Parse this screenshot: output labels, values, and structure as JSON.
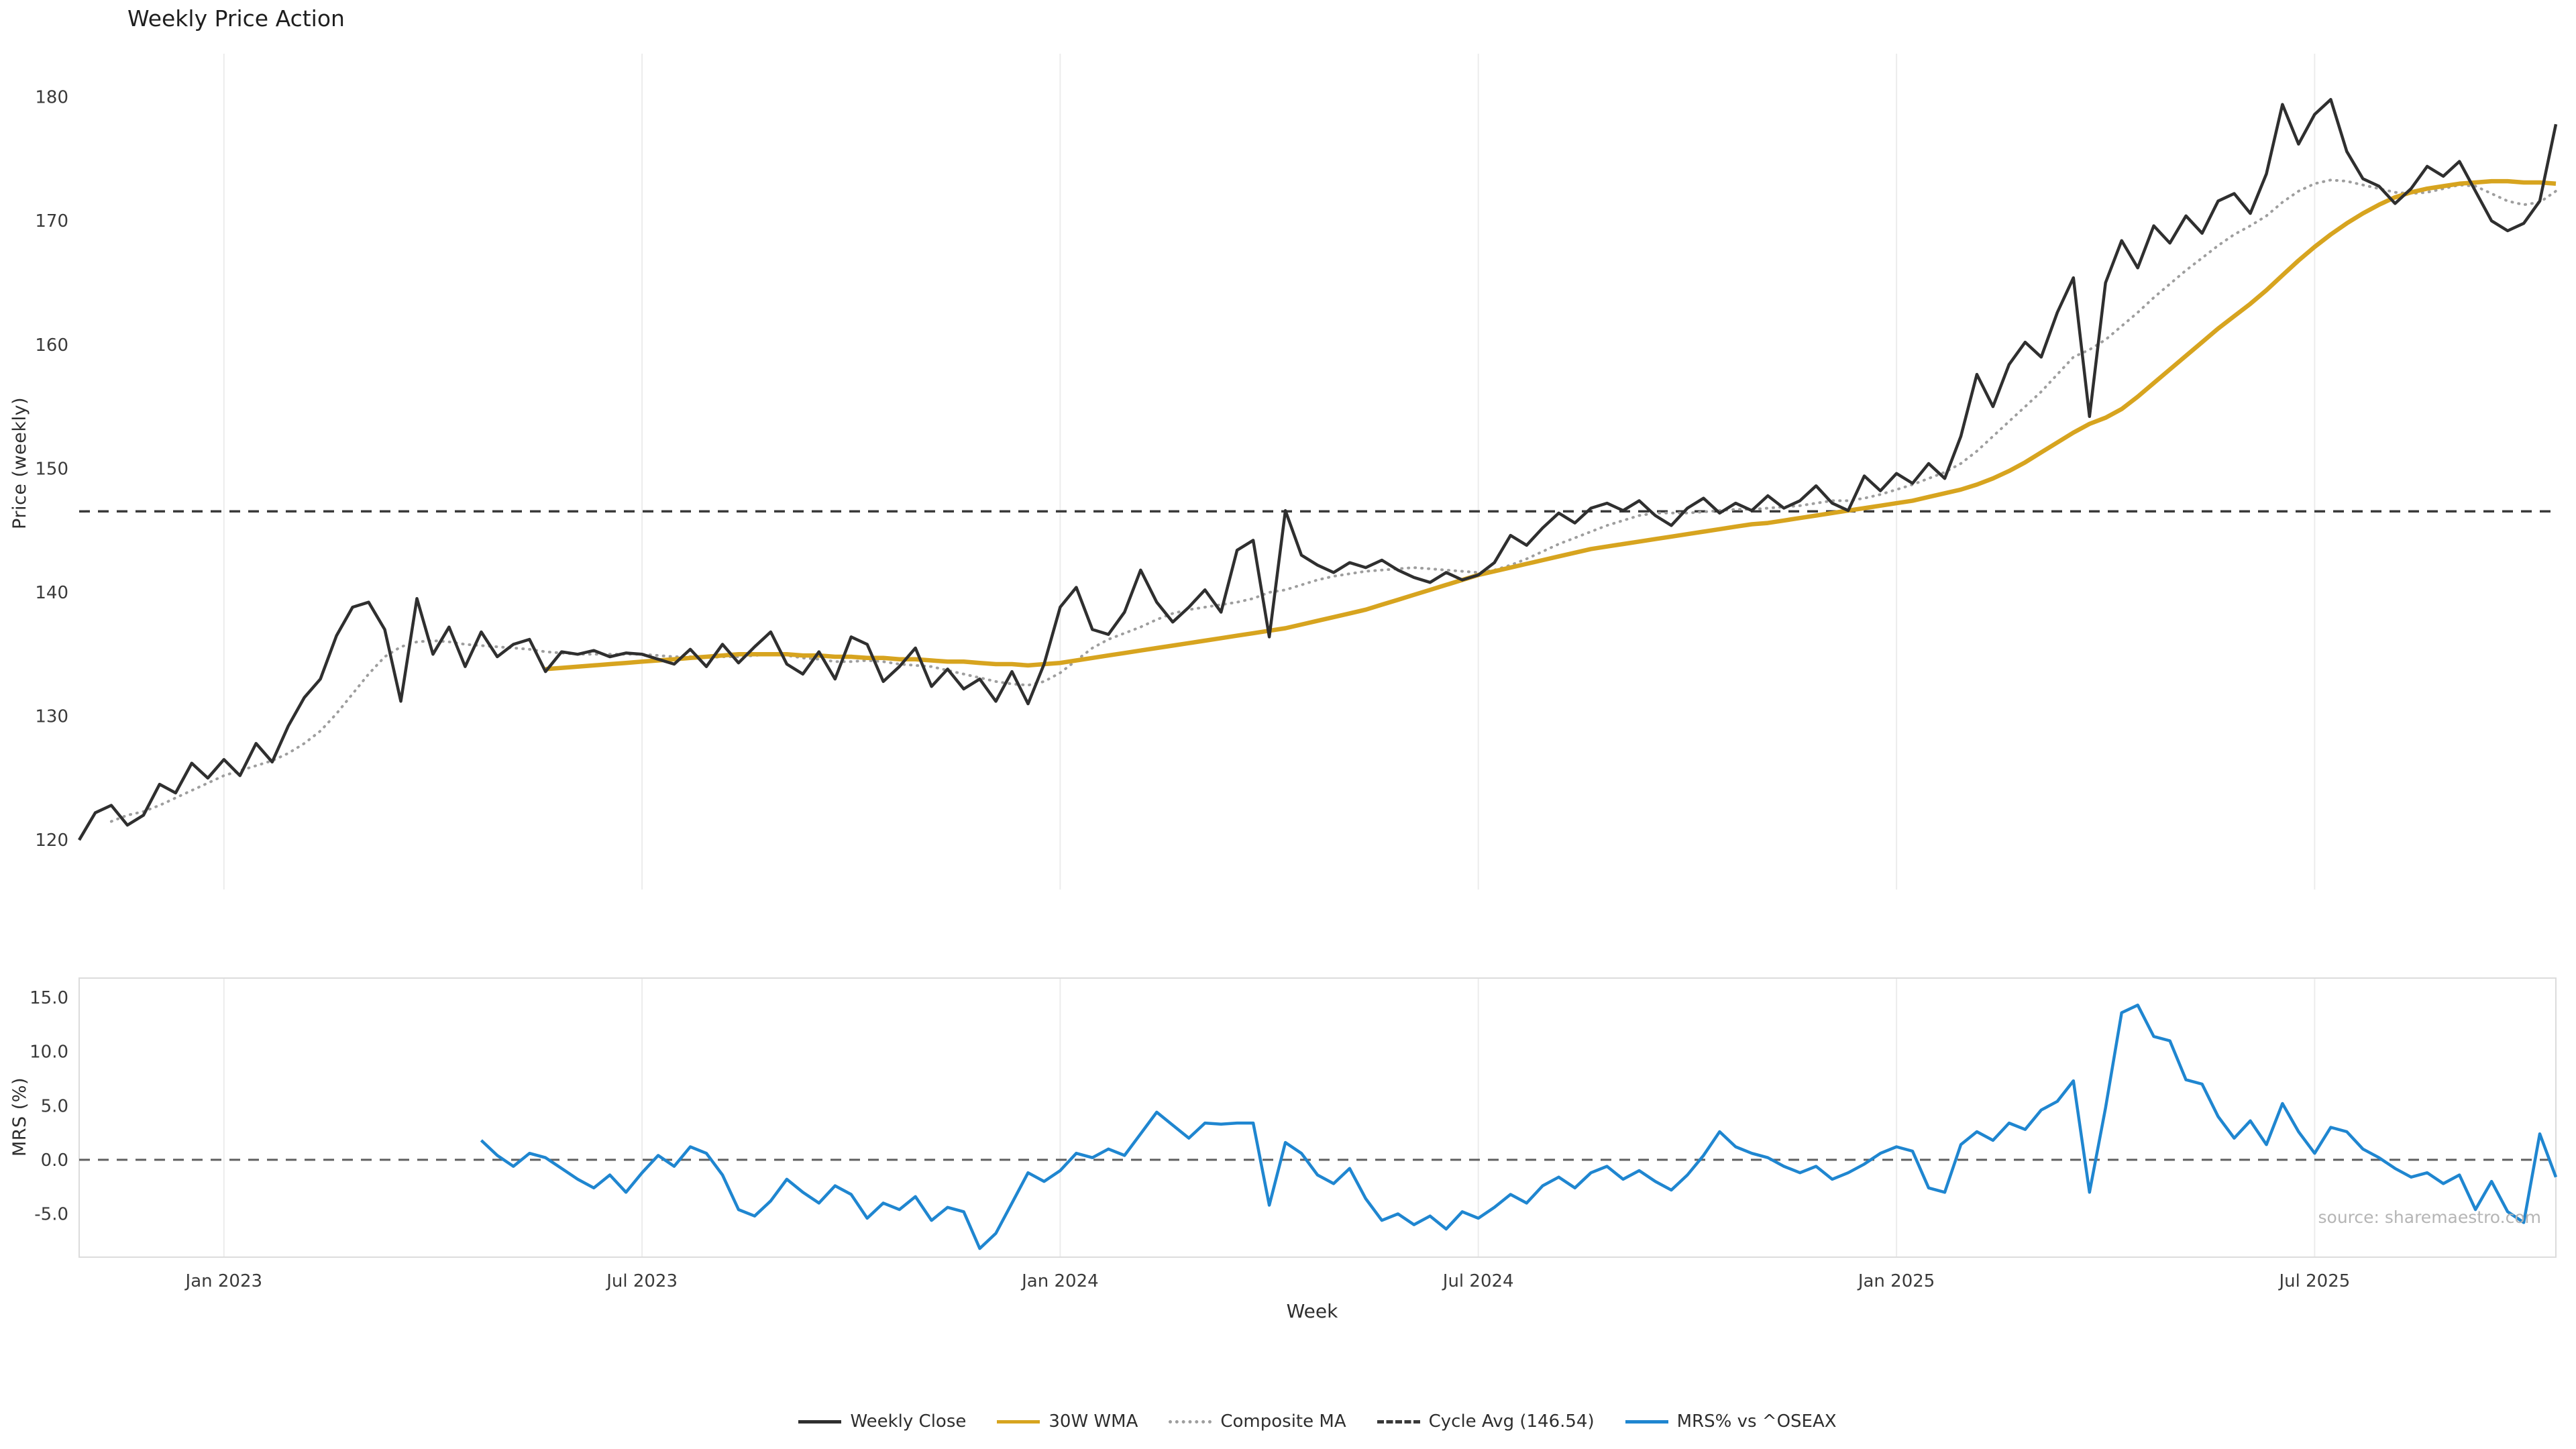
{
  "title": "Weekly Price Action",
  "source_text": "source: sharemaestro.com",
  "axes": {
    "price_axis_label": "Price (weekly)",
    "mrs_axis_label": "MRS (%)",
    "x_axis_label": "Week"
  },
  "colors": {
    "weekly_close": "#2f2f2f",
    "wma_30w": "#d7a41f",
    "composite_ma": "#9e9e9e",
    "cycle_avg": "#3a3a3a",
    "mrs": "#1f86d0",
    "gridline": "#ececec",
    "panel_border": "#dcdcdc",
    "tick_text": "#3a3a3a",
    "source": "#b5b5b5"
  },
  "legend": {
    "items": [
      {
        "label": "Weekly Close",
        "color": "#2f2f2f",
        "line_style": "solid"
      },
      {
        "label": "30W WMA",
        "color": "#d7a41f",
        "line_style": "solid"
      },
      {
        "label": "Composite MA",
        "color": "#9e9e9e",
        "line_style": "dotted"
      },
      {
        "label": "Cycle Avg (146.54)",
        "color": "#3a3a3a",
        "line_style": "dashed"
      },
      {
        "label": "MRS% vs ^OSEAX",
        "color": "#1f86d0",
        "line_style": "solid"
      }
    ]
  },
  "chart_data": [
    {
      "type": "line",
      "panel": "price",
      "title": "Weekly Price Action",
      "xlabel": "Week",
      "ylabel": "Price (weekly)",
      "ylim": [
        116,
        183.5
      ],
      "y_ticks": [
        120,
        130,
        140,
        150,
        160,
        170,
        180
      ],
      "n_weeks": 155,
      "x_tick_labels": [
        "Jan 2023",
        "Jul 2023",
        "Jan 2024",
        "Jul 2024",
        "Jan 2025",
        "Jul 2025"
      ],
      "x_tick_weeks": [
        9,
        35,
        61,
        87,
        113,
        139
      ],
      "grid": "vertical",
      "legend_position": "bottom-center",
      "hlines": [
        {
          "name": "Cycle Avg",
          "value": 146.54,
          "style": "dashed"
        }
      ],
      "series": [
        {
          "name": "Weekly Close",
          "start_week": 0,
          "values": [
            120.0,
            122.2,
            122.8,
            121.2,
            122.0,
            124.5,
            123.8,
            126.2,
            125.0,
            126.5,
            125.2,
            127.8,
            126.3,
            129.2,
            131.5,
            133.0,
            136.5,
            138.8,
            139.2,
            137.0,
            131.2,
            139.5,
            135.0,
            137.2,
            134.0,
            136.8,
            134.8,
            135.8,
            136.2,
            133.6,
            135.2,
            135.0,
            135.3,
            134.8,
            135.1,
            135.0,
            134.6,
            134.2,
            135.4,
            134.0,
            135.8,
            134.3,
            135.6,
            136.8,
            134.2,
            133.4,
            135.2,
            133.0,
            136.4,
            135.8,
            132.8,
            134.0,
            135.5,
            132.4,
            133.8,
            132.2,
            133.0,
            131.2,
            133.6,
            131.0,
            134.2,
            138.8,
            140.4,
            137.0,
            136.6,
            138.4,
            141.8,
            139.2,
            137.6,
            138.8,
            140.2,
            138.4,
            143.4,
            144.2,
            136.4,
            146.6,
            143.0,
            142.2,
            141.6,
            142.4,
            142.0,
            142.6,
            141.8,
            141.2,
            140.8,
            141.6,
            141.0,
            141.4,
            142.4,
            144.6,
            143.8,
            145.2,
            146.4,
            145.6,
            146.8,
            147.2,
            146.6,
            147.4,
            146.2,
            145.4,
            146.8,
            147.6,
            146.4,
            147.2,
            146.6,
            147.8,
            146.8,
            147.4,
            148.6,
            147.2,
            146.6,
            149.4,
            148.2,
            149.6,
            148.8,
            150.4,
            149.2,
            152.6,
            157.6,
            155.0,
            158.4,
            160.2,
            159.0,
            162.6,
            165.4,
            154.2,
            165.0,
            168.4,
            166.2,
            169.6,
            168.2,
            170.4,
            169.0,
            171.6,
            172.2,
            170.6,
            173.8,
            179.4,
            176.2,
            178.6,
            179.8,
            175.6,
            173.4,
            172.8,
            171.4,
            172.6,
            174.4,
            173.6,
            174.8,
            172.4,
            170.0,
            169.2,
            169.8,
            171.6,
            177.8
          ]
        },
        {
          "name": "30W WMA",
          "start_week": 29,
          "values": [
            133.8,
            133.9,
            134.0,
            134.1,
            134.2,
            134.3,
            134.4,
            134.5,
            134.6,
            134.7,
            134.8,
            134.9,
            135.0,
            135.0,
            135.0,
            135.0,
            134.9,
            134.9,
            134.8,
            134.8,
            134.7,
            134.7,
            134.6,
            134.6,
            134.5,
            134.4,
            134.4,
            134.3,
            134.2,
            134.2,
            134.1,
            134.2,
            134.3,
            134.5,
            134.7,
            134.9,
            135.1,
            135.3,
            135.5,
            135.7,
            135.9,
            136.1,
            136.3,
            136.5,
            136.7,
            136.9,
            137.1,
            137.4,
            137.7,
            138.0,
            138.3,
            138.6,
            139.0,
            139.4,
            139.8,
            140.2,
            140.6,
            141.0,
            141.4,
            141.7,
            142.0,
            142.3,
            142.6,
            142.9,
            143.2,
            143.5,
            143.7,
            143.9,
            144.1,
            144.3,
            144.5,
            144.7,
            144.9,
            145.1,
            145.3,
            145.5,
            145.6,
            145.8,
            146.0,
            146.2,
            146.4,
            146.6,
            146.8,
            147.0,
            147.2,
            147.4,
            147.7,
            148.0,
            148.3,
            148.7,
            149.2,
            149.8,
            150.5,
            151.3,
            152.1,
            152.9,
            153.6,
            154.1,
            154.8,
            155.8,
            156.9,
            158.0,
            159.1,
            160.2,
            161.3,
            162.3,
            163.3,
            164.4,
            165.6,
            166.8,
            167.9,
            168.9,
            169.8,
            170.6,
            171.3,
            171.9,
            172.3,
            172.6,
            172.8,
            173.0,
            173.1,
            173.2,
            173.2,
            173.1,
            173.1,
            173.0
          ]
        },
        {
          "name": "Composite MA",
          "start_week": 2,
          "values": [
            121.5,
            122.0,
            122.3,
            122.8,
            123.4,
            124.0,
            124.6,
            125.2,
            125.6,
            126.0,
            126.4,
            127.0,
            127.8,
            128.8,
            130.2,
            131.8,
            133.4,
            134.8,
            135.6,
            136.0,
            136.1,
            136.0,
            135.8,
            135.7,
            135.6,
            135.5,
            135.4,
            135.2,
            135.1,
            135.0,
            135.0,
            135.0,
            135.0,
            135.0,
            134.9,
            134.8,
            134.8,
            134.7,
            134.8,
            134.8,
            134.9,
            135.0,
            134.9,
            134.7,
            134.6,
            134.4,
            134.4,
            134.5,
            134.4,
            134.2,
            134.1,
            134.0,
            133.7,
            133.4,
            133.1,
            132.8,
            132.6,
            132.5,
            132.8,
            133.5,
            134.5,
            135.5,
            136.2,
            136.7,
            137.2,
            137.8,
            138.3,
            138.6,
            138.8,
            139.0,
            139.2,
            139.5,
            140.0,
            140.2,
            140.6,
            141.0,
            141.3,
            141.5,
            141.7,
            141.8,
            141.9,
            142.0,
            141.9,
            141.8,
            141.7,
            141.6,
            141.8,
            142.2,
            142.7,
            143.3,
            143.9,
            144.4,
            144.9,
            145.4,
            145.8,
            146.2,
            146.4,
            146.4,
            146.4,
            146.5,
            146.6,
            146.7,
            146.7,
            146.8,
            146.9,
            147.0,
            147.2,
            147.4,
            147.4,
            147.6,
            147.9,
            148.3,
            148.7,
            149.2,
            149.7,
            150.4,
            151.4,
            152.6,
            153.8,
            155.0,
            156.2,
            157.6,
            159.0,
            159.6,
            160.4,
            161.5,
            162.6,
            163.8,
            164.9,
            166.0,
            167.0,
            168.0,
            168.9,
            169.6,
            170.4,
            171.5,
            172.4,
            173.0,
            173.3,
            173.2,
            172.9,
            172.6,
            172.3,
            172.2,
            172.3,
            172.6,
            172.9,
            172.8,
            172.2,
            171.6,
            171.3,
            171.5,
            172.4
          ]
        }
      ]
    },
    {
      "type": "line",
      "panel": "mrs",
      "xlabel": "Week",
      "ylabel": "MRS (%)",
      "ylim": [
        -9,
        16.8
      ],
      "y_ticks": [
        -5.0,
        0.0,
        5.0,
        10.0,
        15.0
      ],
      "grid": "vertical",
      "hlines": [
        {
          "name": "zero",
          "value": 0,
          "style": "dashed"
        }
      ],
      "series": [
        {
          "name": "MRS% vs ^OSEAX",
          "start_week": 25,
          "values": [
            1.8,
            0.4,
            -0.6,
            0.6,
            0.2,
            -0.8,
            -1.8,
            -2.6,
            -1.4,
            -3.0,
            -1.2,
            0.4,
            -0.6,
            1.2,
            0.6,
            -1.4,
            -4.6,
            -5.2,
            -3.8,
            -1.8,
            -3.0,
            -4.0,
            -2.4,
            -3.2,
            -5.4,
            -4.0,
            -4.6,
            -3.4,
            -5.6,
            -4.4,
            -4.8,
            -8.2,
            -6.8,
            -4.0,
            -1.2,
            -2.0,
            -1.0,
            0.6,
            0.2,
            1.0,
            0.4,
            2.4,
            4.4,
            3.2,
            2.0,
            3.4,
            3.3,
            3.4,
            3.4,
            -4.2,
            1.6,
            0.6,
            -1.4,
            -2.2,
            -0.8,
            -3.6,
            -5.6,
            -5.0,
            -6.0,
            -5.2,
            -6.4,
            -4.8,
            -5.4,
            -4.4,
            -3.2,
            -4.0,
            -2.4,
            -1.6,
            -2.6,
            -1.2,
            -0.6,
            -1.8,
            -1.0,
            -2.0,
            -2.8,
            -1.4,
            0.4,
            2.6,
            1.2,
            0.6,
            0.2,
            -0.6,
            -1.2,
            -0.6,
            -1.8,
            -1.2,
            -0.4,
            0.6,
            1.2,
            0.8,
            -2.6,
            -3.0,
            1.4,
            2.6,
            1.8,
            3.4,
            2.8,
            4.6,
            5.4,
            7.3,
            -3.0,
            4.8,
            13.6,
            14.3,
            11.4,
            11.0,
            7.4,
            7.0,
            4.0,
            2.0,
            3.6,
            1.4,
            5.2,
            2.6,
            0.6,
            3.0,
            2.6,
            1.0,
            0.2,
            -0.8,
            -1.6,
            -1.2,
            -2.2,
            -1.4,
            -4.6,
            -2.0,
            -4.8,
            -5.8,
            2.4,
            -1.6
          ]
        }
      ]
    }
  ]
}
